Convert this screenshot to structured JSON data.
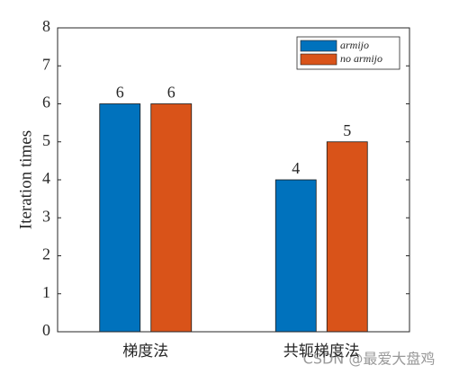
{
  "chart_data": {
    "type": "bar",
    "y_label": "Iteration times",
    "categories": [
      "梯度法",
      "共轭梯度法"
    ],
    "series": [
      {
        "name": "armijo",
        "color": "#0072bd",
        "values": [
          6,
          4
        ]
      },
      {
        "name": "no armijo",
        "color": "#d95319",
        "values": [
          6,
          5
        ]
      }
    ],
    "ylim": [
      0,
      8
    ],
    "yticks": [
      0,
      1,
      2,
      3,
      4,
      5,
      6,
      7,
      8
    ],
    "legend": "top-right",
    "show_value_labels": true,
    "watermark": "CSDN @最爱大盘鸡"
  }
}
